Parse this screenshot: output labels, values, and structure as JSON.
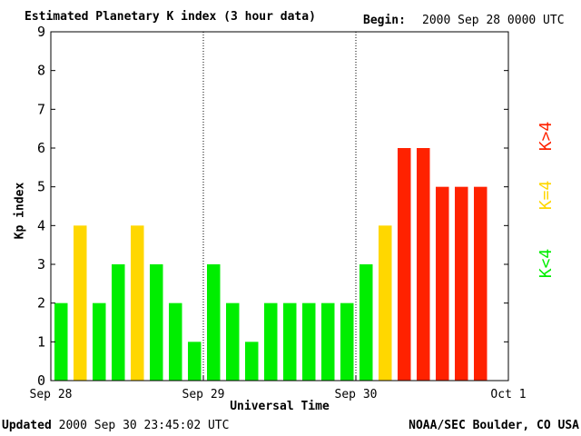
{
  "header": {
    "title": "Estimated Planetary K index (3 hour data)",
    "begin_label": "Begin:",
    "begin_value": "2000 Sep 28 0000 UTC"
  },
  "footer": {
    "updated_label": "Updated",
    "updated_value": "2000 Sep 30 23:45:02 UTC",
    "source": "NOAA/SEC Boulder, CO USA"
  },
  "legend": {
    "high": "K>4",
    "mid": "K=4",
    "low": "K<4"
  },
  "colors": {
    "low": "#00ee00",
    "mid": "#ffd700",
    "high": "#ff2200"
  },
  "chart_data": {
    "type": "bar",
    "title": "Estimated Planetary K index (3 hour data)",
    "xlabel": "Universal Time",
    "ylabel": "Kp index",
    "ylim": [
      0,
      9
    ],
    "yticks": [
      0,
      1,
      2,
      3,
      4,
      5,
      6,
      7,
      8,
      9
    ],
    "x_ticks": [
      "Sep 28",
      "Sep 29",
      "Sep 30",
      "Oct 1"
    ],
    "slots": 24,
    "values": [
      2,
      4,
      2,
      3,
      4,
      3,
      2,
      1,
      3,
      2,
      1,
      2,
      2,
      2,
      2,
      2,
      3,
      4,
      6,
      6,
      5,
      5,
      5
    ],
    "grid": false,
    "day_separators": true
  }
}
